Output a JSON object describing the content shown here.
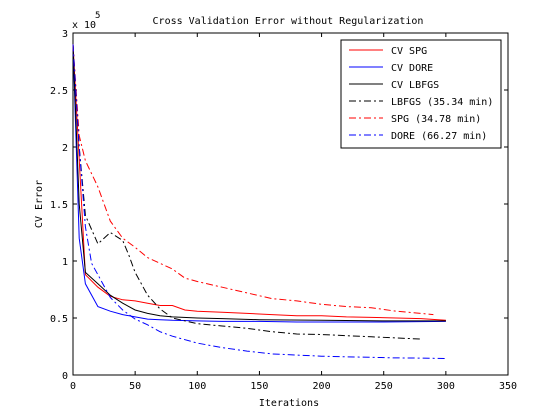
{
  "chart_data": {
    "type": "line",
    "title": "Cross Validation Error without Regularization",
    "xlabel": "Iterations",
    "ylabel": "CV Error",
    "y_multiplier_label": "x 10",
    "y_multiplier_exponent": "5",
    "xlim": [
      0,
      350
    ],
    "ylim": [
      0,
      300000
    ],
    "xticks": [
      0,
      50,
      100,
      150,
      200,
      250,
      300,
      350
    ],
    "yticks": [
      0,
      50000,
      100000,
      150000,
      200000,
      250000,
      300000
    ],
    "xtick_labels": [
      "0",
      "50",
      "100",
      "150",
      "200",
      "250",
      "300",
      "350"
    ],
    "ytick_labels": [
      "0",
      "0.5",
      "1",
      "1.5",
      "2",
      "2.5",
      "3"
    ],
    "grid": false,
    "legend_position": "top-right",
    "series": [
      {
        "name": "CV SPG",
        "color": "#ff0000",
        "style": "solid",
        "x": [
          0,
          10,
          20,
          30,
          40,
          50,
          60,
          70,
          80,
          90,
          100,
          120,
          140,
          160,
          180,
          200,
          220,
          240,
          260,
          280,
          300
        ],
        "y": [
          290000,
          88000,
          77000,
          69000,
          66000,
          65000,
          63000,
          61000,
          61000,
          57000,
          56000,
          55000,
          54000,
          53000,
          52000,
          52000,
          51000,
          50500,
          50000,
          49500,
          48000
        ]
      },
      {
        "name": "CV DORE",
        "color": "#0000ff",
        "style": "solid",
        "x": [
          0,
          5,
          10,
          20,
          30,
          40,
          50,
          60,
          70,
          80,
          100,
          120,
          150,
          180,
          200,
          250,
          300
        ],
        "y": [
          290000,
          120000,
          80000,
          60000,
          56000,
          53000,
          51000,
          49000,
          48500,
          48000,
          47500,
          47000,
          47000,
          46500,
          46500,
          46500,
          47000
        ]
      },
      {
        "name": "CV LBFGS",
        "color": "#000000",
        "style": "solid",
        "x": [
          0,
          5,
          10,
          20,
          30,
          40,
          50,
          60,
          70,
          80,
          100,
          120,
          150,
          200,
          250,
          300
        ],
        "y": [
          290000,
          150000,
          90000,
          80000,
          70000,
          63000,
          57000,
          54000,
          52000,
          51000,
          50000,
          49500,
          48500,
          48000,
          47500,
          47500
        ]
      },
      {
        "name": "LBFGS (35.34 min)",
        "color": "#000000",
        "style": "dashdot",
        "x": [
          0,
          5,
          10,
          20,
          30,
          40,
          45,
          50,
          60,
          70,
          80,
          100,
          120,
          140,
          160,
          180,
          200,
          220,
          240,
          260,
          280
        ],
        "y": [
          290000,
          200000,
          140000,
          115000,
          125000,
          118000,
          105000,
          90000,
          70000,
          58000,
          50000,
          45000,
          43000,
          41000,
          38000,
          36000,
          35500,
          34500,
          33500,
          32500,
          31500
        ]
      },
      {
        "name": "SPG (34.78 min)",
        "color": "#ff0000",
        "style": "dashdot",
        "x": [
          0,
          5,
          10,
          20,
          30,
          40,
          50,
          60,
          70,
          80,
          90,
          100,
          120,
          140,
          160,
          180,
          200,
          220,
          240,
          260,
          280,
          290
        ],
        "y": [
          290000,
          210000,
          188000,
          165000,
          135000,
          120000,
          112000,
          103000,
          98000,
          93000,
          85000,
          82000,
          77000,
          72000,
          67000,
          65000,
          62000,
          60000,
          59000,
          56000,
          54000,
          53000
        ]
      },
      {
        "name": "DORE (66.27 min)",
        "color": "#0000ff",
        "style": "dashdot",
        "x": [
          0,
          5,
          10,
          15,
          20,
          30,
          40,
          50,
          60,
          70,
          80,
          100,
          120,
          140,
          160,
          180,
          200,
          220,
          240,
          260,
          280,
          300
        ],
        "y": [
          290000,
          200000,
          130000,
          98000,
          88000,
          68000,
          57000,
          49000,
          44000,
          38000,
          34000,
          28000,
          24000,
          21000,
          18500,
          17500,
          16500,
          16000,
          15500,
          15000,
          14800,
          14500
        ]
      }
    ]
  }
}
